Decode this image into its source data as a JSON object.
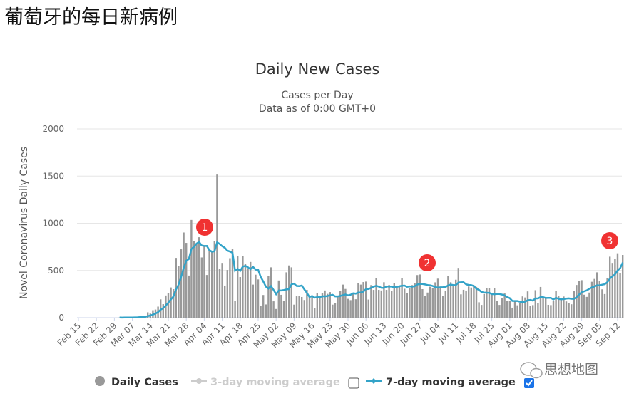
{
  "page_title": "葡萄牙的每日新病例",
  "watermark": "思想地图",
  "colors": {
    "bars": "#999999",
    "line": "#33a3c8",
    "annotation": "#f03232",
    "checkbox_checked": "#1a73e8",
    "disabled_text": "#cccccc"
  },
  "legend": {
    "daily": "Daily Cases",
    "ma3": "3-day moving average",
    "ma3_checked": false,
    "ma7": "7-day moving average",
    "ma7_checked": true
  },
  "annotations": [
    {
      "label": "1",
      "date": "Apr 03"
    },
    {
      "label": "2",
      "date": "Jun 27"
    },
    {
      "label": "3",
      "date": "Sep 11"
    }
  ],
  "chart_data": {
    "type": "bar",
    "title": "Daily New Cases",
    "subtitle": [
      "Cases per Day",
      "Data as of 0:00 GMT+0"
    ],
    "ylabel": "Novel Coronavirus Daily Cases",
    "ylim": [
      0,
      2000
    ],
    "yticks": [
      "0",
      "500",
      "1000",
      "1500",
      "2000"
    ],
    "grid": true,
    "legend_position": "bottom",
    "x_start": "Feb 15",
    "x_end": "Sep 14",
    "xticks": [
      "Feb 15",
      "Feb 22",
      "Feb 29",
      "Mar 07",
      "Mar 14",
      "Mar 21",
      "Mar 28",
      "Apr 04",
      "Apr 11",
      "Apr 18",
      "Apr 25",
      "May 02",
      "May 09",
      "May 16",
      "May 23",
      "May 30",
      "Jun 06",
      "Jun 13",
      "Jun 20",
      "Jun 27",
      "Jul 04",
      "Jul 11",
      "Jul 18",
      "Jul 25",
      "Aug 01",
      "Aug 08",
      "Aug 15",
      "Aug 22",
      "Aug 29",
      "Sep 05",
      "Sep 12"
    ],
    "series": [
      {
        "name": "Daily Cases",
        "type": "bar",
        "first_date": "Mar 02",
        "values": [
          2,
          0,
          2,
          1,
          4,
          5,
          8,
          9,
          10,
          11,
          18,
          57,
          43,
          79,
          86,
          117,
          194,
          143,
          235,
          260,
          320,
          302,
          633,
          549,
          724,
          902,
          792,
          446,
          1035,
          808,
          783,
          852,
          638,
          754,
          452,
          712,
          699,
          815,
          1516,
          518,
          580,
          340,
          505,
          630,
          730,
          177,
          655,
          430,
          655,
          570,
          518,
          590,
          350,
          455,
          405,
          126,
          240,
          140,
          440,
          533,
          173,
          92,
          394,
          242,
          178,
          480,
          553,
          533,
          138,
          226,
          234,
          219,
          187,
          294,
          227,
          226,
          98,
          264,
          222,
          257,
          288,
          252,
          271,
          138,
          152,
          223,
          286,
          350,
          304,
          199,
          186,
          261,
          195,
          366,
          350,
          377,
          382,
          192,
          345,
          294,
          421,
          294,
          288,
          375,
          294,
          346,
          284,
          364,
          331,
          329,
          417,
          306,
          259,
          311,
          345,
          367,
          451,
          457,
          302,
          229,
          266,
          328,
          313,
          374,
          413,
          328,
          232,
          287,
          443,
          375,
          339,
          402,
          527,
          247,
          295,
          287,
          330,
          319,
          343,
          325,
          163,
          135,
          251,
          313,
          312,
          251,
          312,
          180,
          135,
          208,
          256,
          179,
          176,
          106,
          178,
          131,
          157,
          225,
          214,
          278,
          126,
          133,
          291,
          158,
          325,
          213,
          210,
          136,
          133,
          175,
          286,
          234,
          189,
          224,
          172,
          154,
          142,
          282,
          346,
          392,
          397,
          243,
          220,
          266,
          380,
          410,
          480,
          390,
          300,
          250,
          420,
          646,
          580,
          620,
          682,
          473,
          664
        ]
      },
      {
        "name": "7-day moving average",
        "type": "line"
      }
    ]
  }
}
